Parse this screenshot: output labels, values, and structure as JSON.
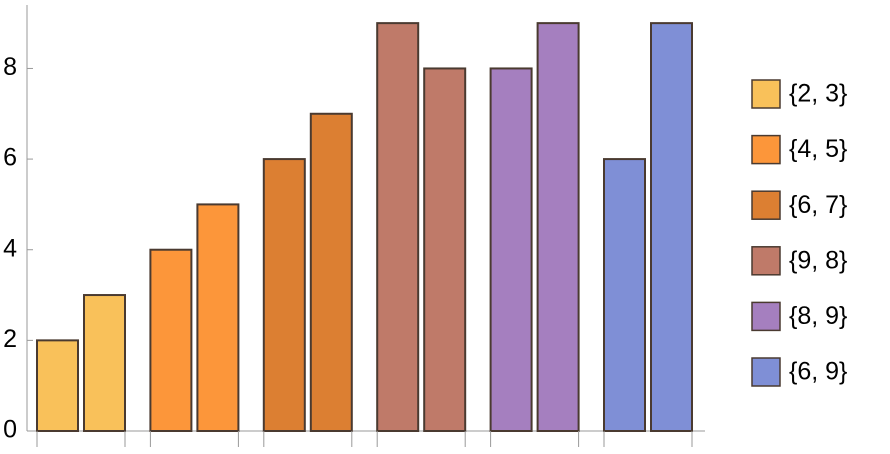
{
  "chart_data": {
    "type": "bar",
    "series": [
      {
        "name": "{2, 3}",
        "color": "#f9c15a",
        "values": [
          2,
          3
        ]
      },
      {
        "name": "{4, 5}",
        "color": "#fc963a",
        "values": [
          4,
          5
        ]
      },
      {
        "name": "{6, 7}",
        "color": "#dc7f32",
        "values": [
          6,
          7
        ]
      },
      {
        "name": "{9, 8}",
        "color": "#bf7a69",
        "values": [
          9,
          8
        ]
      },
      {
        "name": "{8, 9}",
        "color": "#a57fbf",
        "values": [
          8,
          9
        ]
      },
      {
        "name": "{6, 9}",
        "color": "#7f8fd6",
        "values": [
          6,
          9
        ]
      }
    ],
    "ylim": [
      0,
      9.4
    ],
    "yticks": [
      0,
      2,
      4,
      6,
      8
    ],
    "legend": "right"
  }
}
